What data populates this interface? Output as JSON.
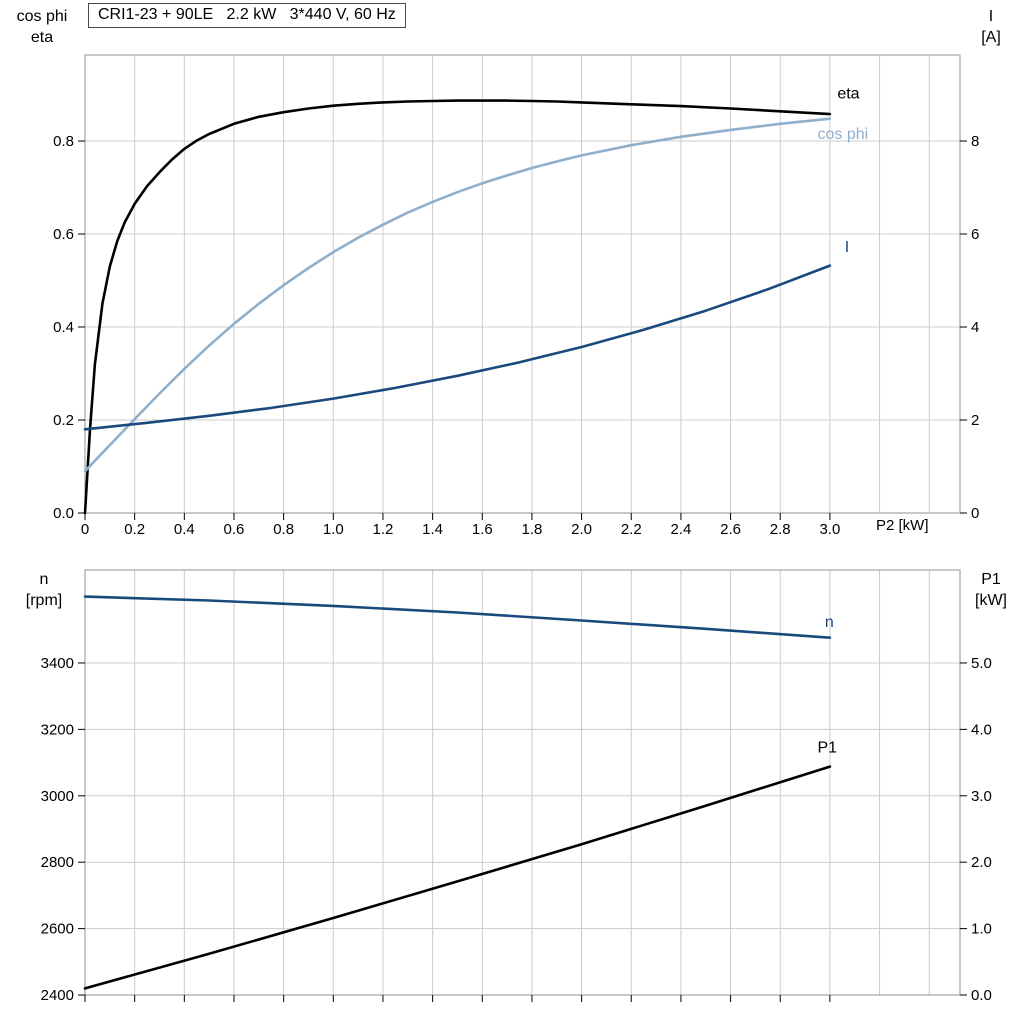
{
  "colors": {
    "eta": "#000000",
    "cos_phi": "#8fafcb",
    "current": "#1a4a7d",
    "speed": "#1a4a7d",
    "p1": "#000000",
    "grid": "#cccccc",
    "border": "#919191",
    "tick": "#000000",
    "text": "#000000"
  },
  "chart_data": [
    {
      "type": "line",
      "name": "motor-efficiency-current-chart",
      "title": "CRI1-23 + 90LE   2.2 kW   3*440 V, 60 Hz",
      "x_axis": {
        "label": "P2 [kW]",
        "range": [
          0,
          3.524
        ],
        "tick_values": [
          0,
          0.2,
          0.4,
          0.6,
          0.8,
          1.0,
          1.2,
          1.4,
          1.6,
          1.8,
          2.0,
          2.2,
          2.4,
          2.6,
          2.8,
          3.0
        ],
        "tick_labels": [
          "0",
          "0.2",
          "0.4",
          "0.6",
          "0.8",
          "1.0",
          "1.2",
          "1.4",
          "1.6",
          "1.8",
          "2.0",
          "2.2",
          "2.4",
          "2.6",
          "2.8",
          "3.0"
        ],
        "grid_extra": [
          3.2,
          3.4
        ],
        "show_tick_labels": true
      },
      "y_left": {
        "labels": [
          "cos phi",
          "eta"
        ],
        "range": [
          0,
          0.985
        ],
        "tick_values": [
          0,
          0.2,
          0.4,
          0.6,
          0.8
        ],
        "tick_labels": [
          "0.0",
          "0.2",
          "0.4",
          "0.6",
          "0.8"
        ]
      },
      "y_right": {
        "labels": [
          "I",
          "[A]"
        ],
        "range": [
          0,
          9.85
        ],
        "tick_values": [
          0,
          2,
          4,
          6,
          8
        ],
        "tick_labels": [
          "0",
          "2",
          "4",
          "6",
          "8"
        ]
      },
      "grid": true,
      "legend_position": "end-of-curve",
      "series": [
        {
          "name": "eta",
          "label": "eta",
          "axis": "left",
          "color_key": "eta",
          "label_at": [
            3.03,
            0.902
          ],
          "x": [
            0,
            0.02,
            0.04,
            0.07,
            0.1,
            0.13,
            0.16,
            0.2,
            0.25,
            0.3,
            0.35,
            0.4,
            0.45,
            0.5,
            0.6,
            0.7,
            0.8,
            0.9,
            1.0,
            1.1,
            1.2,
            1.3,
            1.4,
            1.5,
            1.6,
            1.7,
            1.8,
            1.9,
            2.0,
            2.2,
            2.4,
            2.6,
            2.8,
            3.0
          ],
          "y": [
            0,
            0.18,
            0.32,
            0.45,
            0.53,
            0.585,
            0.625,
            0.665,
            0.703,
            0.733,
            0.76,
            0.783,
            0.801,
            0.815,
            0.837,
            0.852,
            0.862,
            0.87,
            0.876,
            0.88,
            0.883,
            0.885,
            0.886,
            0.887,
            0.887,
            0.887,
            0.886,
            0.885,
            0.883,
            0.879,
            0.875,
            0.87,
            0.864,
            0.858
          ]
        },
        {
          "name": "cos phi",
          "label": "cos phi",
          "axis": "left",
          "color_key": "cos_phi",
          "label_at": [
            2.95,
            0.815
          ],
          "x": [
            0,
            0.1,
            0.2,
            0.3,
            0.4,
            0.5,
            0.6,
            0.7,
            0.8,
            0.9,
            1.0,
            1.1,
            1.2,
            1.3,
            1.4,
            1.5,
            1.6,
            1.7,
            1.8,
            1.9,
            2.0,
            2.2,
            2.4,
            2.6,
            2.8,
            3.0
          ],
          "y": [
            0.09,
            0.146,
            0.202,
            0.257,
            0.31,
            0.36,
            0.407,
            0.45,
            0.49,
            0.527,
            0.561,
            0.592,
            0.62,
            0.646,
            0.669,
            0.69,
            0.709,
            0.726,
            0.742,
            0.756,
            0.769,
            0.791,
            0.809,
            0.824,
            0.837,
            0.848
          ]
        },
        {
          "name": "I",
          "label": "I",
          "axis": "right",
          "color_key": "current",
          "label_at": [
            3.06,
            5.72
          ],
          "x": [
            0,
            0.25,
            0.5,
            0.75,
            1.0,
            1.25,
            1.5,
            1.75,
            2.0,
            2.25,
            2.5,
            2.75,
            3.0
          ],
          "y": [
            1.8,
            1.94,
            2.09,
            2.26,
            2.46,
            2.69,
            2.95,
            3.24,
            3.57,
            3.94,
            4.35,
            4.81,
            5.32
          ]
        }
      ]
    },
    {
      "type": "line",
      "name": "motor-speed-power-chart",
      "title": "",
      "x_axis": {
        "label": "",
        "range": [
          0,
          3.524
        ],
        "tick_values": [
          0,
          0.2,
          0.4,
          0.6,
          0.8,
          1.0,
          1.2,
          1.4,
          1.6,
          1.8,
          2.0,
          2.2,
          2.4,
          2.6,
          2.8,
          3.0
        ],
        "tick_labels": [],
        "grid_extra": [
          3.2,
          3.4
        ],
        "show_tick_labels": false
      },
      "y_left": {
        "labels": [
          "n",
          "[rpm]"
        ],
        "range": [
          2400,
          3680
        ],
        "tick_values": [
          2400,
          2600,
          2800,
          3000,
          3200,
          3400
        ],
        "tick_labels": [
          "2400",
          "2600",
          "2800",
          "3000",
          "3200",
          "3400"
        ]
      },
      "y_right": {
        "labels": [
          "P1",
          "[kW]"
        ],
        "range": [
          0,
          6.4
        ],
        "tick_values": [
          0,
          1,
          2,
          3,
          4,
          5
        ],
        "tick_labels": [
          "0.0",
          "1.0",
          "2.0",
          "3.0",
          "4.0",
          "5.0"
        ]
      },
      "grid": true,
      "legend_position": "end-of-curve",
      "series": [
        {
          "name": "n",
          "label": "n",
          "axis": "left",
          "color_key": "speed",
          "label_at": [
            2.98,
            3524
          ],
          "x": [
            0,
            0.5,
            1.0,
            1.5,
            2.0,
            2.5,
            3.0
          ],
          "y": [
            3600,
            3588,
            3572,
            3552,
            3528,
            3503,
            3476
          ]
        },
        {
          "name": "P1",
          "label": "P1",
          "axis": "right",
          "color_key": "p1",
          "label_at": [
            2.95,
            3.73
          ],
          "x": [
            0,
            0.5,
            1.0,
            1.5,
            2.0,
            2.5,
            3.0
          ],
          "y": [
            0.1,
            0.62,
            1.16,
            1.71,
            2.27,
            2.85,
            3.44
          ]
        }
      ]
    }
  ]
}
